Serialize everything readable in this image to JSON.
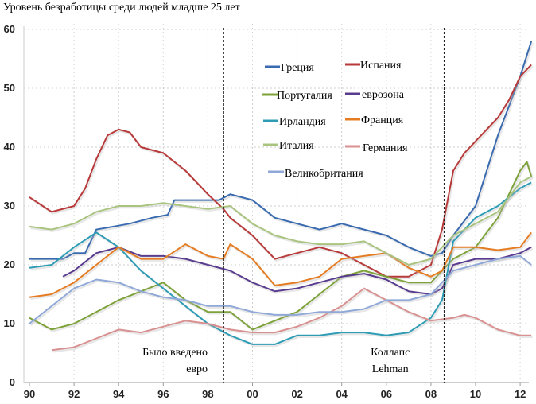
{
  "title": "Уровень безработицы среди людей младше 25 лет",
  "chart_data": {
    "type": "line",
    "title": "Уровень безработицы среди людей младше 25 лет",
    "xlabel": "",
    "ylabel": "",
    "xlim": [
      1990,
      2012.6
    ],
    "ylim": [
      0,
      60
    ],
    "grid": true,
    "legend_position": "top-right",
    "x_tick_labels": [
      "90",
      "92",
      "94",
      "96",
      "98",
      "00",
      "02",
      "04",
      "06",
      "08",
      "10",
      "12"
    ],
    "y_tick_labels": [
      "0",
      "10",
      "20",
      "30",
      "40",
      "50",
      "60"
    ],
    "annotations": [
      {
        "text_line1": "Было введено",
        "text_line2": "евро",
        "x": 1998.7
      },
      {
        "text_line1": "Коллапс",
        "text_line2": "Lehman",
        "x": 2008.6
      }
    ],
    "series": [
      {
        "name": "Греция",
        "color": "#3a6bb0",
        "x": [
          1990,
          1991.5,
          1992,
          1992.5,
          1993,
          1994.5,
          1995.5,
          1996.2,
          1996.5,
          1998.5,
          1999,
          2000,
          2001,
          2002,
          2003,
          2004,
          2005,
          2006,
          2007,
          2008,
          2008.5,
          2009,
          2010,
          2011,
          2011.5,
          2012,
          2012.5
        ],
        "y": [
          21,
          21,
          22,
          22,
          26,
          27,
          28,
          28.5,
          31,
          31,
          32,
          31,
          28,
          27,
          26,
          27,
          26,
          25,
          23,
          21.5,
          22,
          25,
          30,
          42,
          47,
          52,
          58
        ]
      },
      {
        "name": "Испания",
        "color": "#b83a3a",
        "x": [
          1990,
          1991,
          1992,
          1992.5,
          1993,
          1993.5,
          1994,
          1994.5,
          1995,
          1996,
          1997,
          1998,
          1998.7,
          1999,
          2000,
          2001,
          2002,
          2003,
          2004,
          2005,
          2006,
          2007,
          2008,
          2008.5,
          2009,
          2009.5,
          2010,
          2011,
          2011.5,
          2012,
          2012.5
        ],
        "y": [
          31.5,
          29,
          30,
          33,
          38,
          42,
          43,
          42.5,
          40,
          39,
          36,
          32,
          29.5,
          28,
          25,
          21,
          22,
          23,
          22,
          20,
          18,
          18,
          20,
          26,
          36,
          39,
          41,
          45,
          48,
          52,
          54
        ]
      },
      {
        "name": "Португалия",
        "color": "#7ea23a",
        "x": [
          1990,
          1991,
          1992,
          1993,
          1994,
          1995,
          1996,
          1997,
          1998,
          1999,
          2000,
          2001,
          2002,
          2003,
          2004,
          2005,
          2006,
          2007,
          2008,
          2008.5,
          2009,
          2010,
          2011,
          2012,
          2012.3,
          2012.5
        ],
        "y": [
          11,
          9,
          10,
          12,
          14,
          15.5,
          17,
          14,
          12,
          12,
          9,
          10.5,
          12,
          15,
          18,
          19,
          18,
          17,
          17,
          19,
          21,
          23,
          28,
          36,
          37.5,
          35
        ]
      },
      {
        "name": "еврозона",
        "color": "#5a3c8e",
        "x": [
          1991.5,
          1992,
          1993,
          1994,
          1995,
          1996,
          1997,
          1998,
          1999,
          2000,
          2001,
          2002,
          2003,
          2004,
          2005,
          2006,
          2007,
          2008,
          2008.5,
          2009,
          2010,
          2011,
          2012,
          2012.5
        ],
        "y": [
          18,
          19,
          22,
          23,
          21.5,
          21.5,
          21,
          20,
          19,
          17,
          15.5,
          16,
          17,
          18,
          18.5,
          17.5,
          15.5,
          15,
          16,
          20,
          21,
          21,
          22,
          23
        ]
      },
      {
        "name": "Ирландия",
        "color": "#2e9cb5",
        "x": [
          1990,
          1991,
          1992,
          1993,
          1994,
          1995,
          1996,
          1997,
          1998,
          1999,
          2000,
          2001,
          2002,
          2003,
          2004,
          2005,
          2006,
          2007,
          2008,
          2008.5,
          2009,
          2010,
          2011,
          2012,
          2012.5
        ],
        "y": [
          19.5,
          20,
          23,
          25.5,
          23,
          19,
          16,
          13,
          10,
          8,
          6.5,
          6.5,
          8,
          8,
          8.5,
          8.5,
          8,
          8.5,
          11,
          14,
          24,
          28,
          30,
          33,
          34
        ]
      },
      {
        "name": "Франция",
        "color": "#e57c22",
        "x": [
          1990,
          1991,
          1992,
          1993,
          1994,
          1995,
          1996,
          1997,
          1998,
          1998.7,
          1999,
          2000,
          2001,
          2002,
          2003,
          2004,
          2005,
          2006,
          2007,
          2008,
          2008.5,
          2009,
          2010,
          2011,
          2012,
          2012.5
        ],
        "y": [
          14.5,
          15,
          17,
          20,
          23,
          21,
          21,
          23.5,
          21.5,
          21,
          23.5,
          21,
          16.5,
          17,
          18,
          21,
          21.5,
          22,
          19.5,
          18,
          19,
          23,
          23,
          22.5,
          23,
          25.5
        ]
      },
      {
        "name": "Италия",
        "color": "#a9c47f",
        "x": [
          1990,
          1991,
          1992,
          1993,
          1994,
          1995,
          1996,
          1997,
          1998,
          1999,
          2000,
          2001,
          2002,
          2003,
          2004,
          2005,
          2006,
          2007,
          2008,
          2009,
          2010,
          2011,
          2012,
          2012.5
        ],
        "y": [
          26.5,
          26,
          27,
          29,
          30,
          30,
          30.5,
          30,
          29.5,
          30,
          27,
          25,
          24,
          23.5,
          23.5,
          24,
          22,
          20,
          21,
          25,
          27,
          29,
          34,
          35
        ]
      },
      {
        "name": "Германия",
        "color": "#d99090",
        "x": [
          1991,
          1992,
          1993,
          1994,
          1995,
          1996,
          1997,
          1998,
          1999,
          2000,
          2001,
          2002,
          2003,
          2004,
          2005,
          2006,
          2007,
          2008,
          2009,
          2009.5,
          2010,
          2011,
          2012,
          2012.5
        ],
        "y": [
          5.5,
          6,
          7.5,
          9,
          8.5,
          9.5,
          10.5,
          10,
          9,
          8.5,
          8.5,
          9.5,
          11,
          13,
          16,
          14,
          12,
          10.5,
          11,
          11.5,
          11,
          9,
          8,
          8
        ]
      },
      {
        "name": "Великобритания",
        "color": "#8fa8d8",
        "x": [
          1990,
          1991,
          1992,
          1993,
          1994,
          1995,
          1996,
          1997,
          1998,
          1999,
          2000,
          2001,
          2002,
          2003,
          2004,
          2005,
          2006,
          2007,
          2008,
          2009,
          2010,
          2011,
          2012,
          2012.5
        ],
        "y": [
          10,
          13,
          16,
          17.5,
          17,
          15.5,
          14.5,
          14,
          13,
          13,
          12,
          11.5,
          11.5,
          12,
          12,
          12.5,
          14,
          14,
          15,
          19,
          20,
          21,
          21.5,
          20
        ]
      }
    ]
  }
}
